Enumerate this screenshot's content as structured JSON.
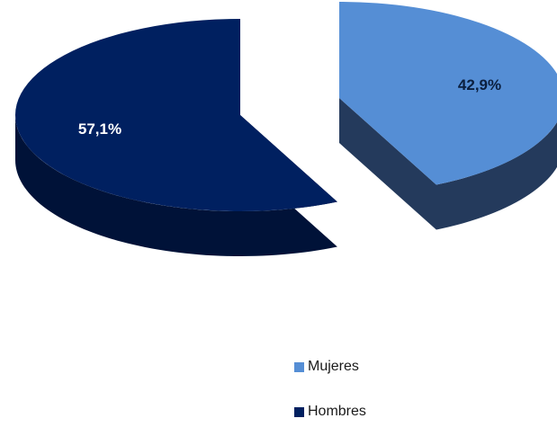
{
  "chart_data": {
    "type": "pie",
    "title": "",
    "three_d": true,
    "exploded": true,
    "legend_position": "bottom-right",
    "data_label_format": "percent",
    "categories": [
      "Mujeres",
      "Hombres"
    ],
    "values": [
      42.9,
      57.1
    ],
    "labels": [
      "42,9%",
      "57,1%"
    ],
    "colors": [
      "#558ed5",
      "#002060"
    ],
    "side_colors": [
      "#243a5c",
      "#001238"
    ],
    "label_colors": [
      "#0b1f3f",
      "#ffffff"
    ]
  }
}
